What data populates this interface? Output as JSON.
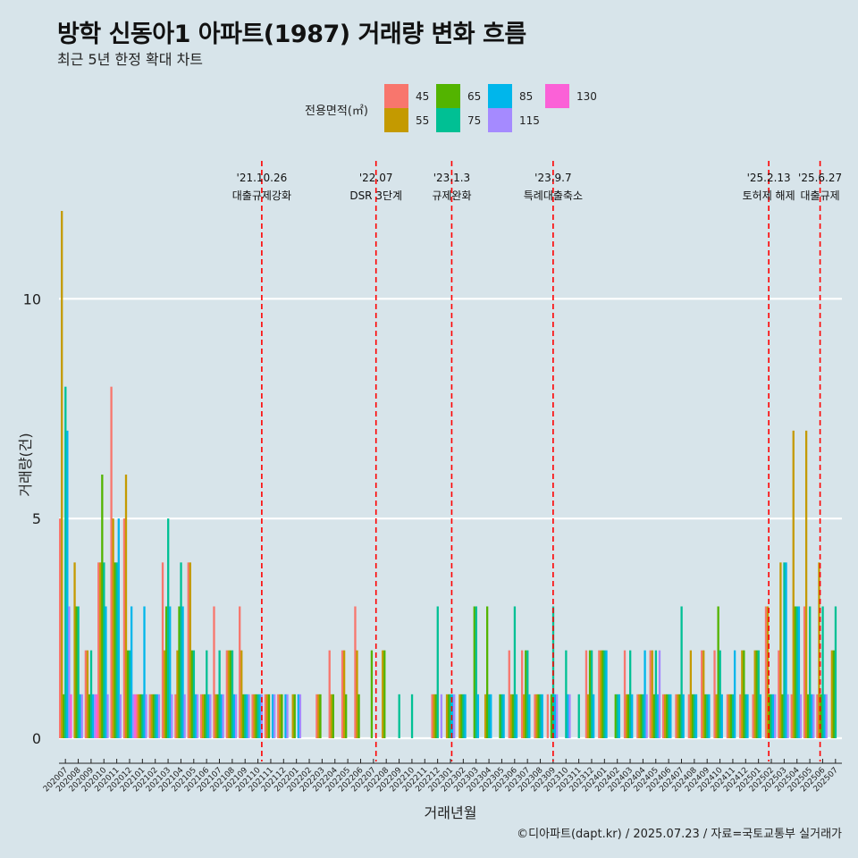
{
  "title": "방학 신동아1 아파트(1987) 거래량 변화 흐름",
  "subtitle": "최근 5년 한정 확대 차트",
  "caption": "©디아파트(dapt.kr) / 2025.07.23 / 자료=국토교통부 실거래가",
  "chart_data": {
    "type": "bar",
    "title": "방학 신동아1 아파트(1987) 거래량 변화 흐름",
    "xlabel": "거래년월",
    "ylabel": "거래량(건)",
    "ylim": [
      0,
      12
    ],
    "yticks": [
      0,
      5,
      10
    ],
    "legend_title": "전용면적(㎡)",
    "categories": [
      "202007",
      "202008",
      "202009",
      "202010",
      "202011",
      "202012",
      "202101",
      "202102",
      "202103",
      "202104",
      "202105",
      "202106",
      "202107",
      "202108",
      "202109",
      "202110",
      "202111",
      "202112",
      "202201",
      "202202",
      "202203",
      "202204",
      "202205",
      "202206",
      "202207",
      "202208",
      "202209",
      "202210",
      "202211",
      "202212",
      "202301",
      "202302",
      "202303",
      "202304",
      "202305",
      "202306",
      "202307",
      "202308",
      "202309",
      "202310",
      "202311",
      "202312",
      "202401",
      "202402",
      "202403",
      "202404",
      "202405",
      "202406",
      "202407",
      "202408",
      "202409",
      "202410",
      "202411",
      "202412",
      "202501",
      "202502",
      "202503",
      "202504",
      "202505",
      "202506",
      "202507"
    ],
    "series": [
      {
        "name": "45",
        "color": "#F8766D",
        "values": [
          5,
          0,
          2,
          4,
          8,
          5,
          1,
          1,
          4,
          1,
          4,
          1,
          3,
          2,
          3,
          1,
          1,
          1,
          0,
          0,
          1,
          2,
          2,
          3,
          0,
          0,
          0,
          0,
          0,
          1,
          0,
          0,
          0,
          0,
          0,
          2,
          2,
          1,
          1,
          0,
          0,
          2,
          2,
          0,
          2,
          1,
          2,
          1,
          1,
          1,
          2,
          2,
          1,
          1,
          1,
          3,
          2,
          1,
          3,
          1,
          0
        ]
      },
      {
        "name": "55",
        "color": "#C49A00",
        "values": [
          12,
          4,
          2,
          4,
          5,
          6,
          1,
          1,
          2,
          2,
          4,
          1,
          1,
          2,
          2,
          1,
          1,
          1,
          1,
          0,
          1,
          1,
          2,
          2,
          0,
          2,
          0,
          0,
          0,
          1,
          1,
          1,
          0,
          1,
          0,
          1,
          1,
          1,
          0,
          0,
          0,
          1,
          2,
          0,
          1,
          1,
          2,
          1,
          1,
          2,
          2,
          1,
          1,
          2,
          2,
          3,
          4,
          7,
          7,
          4,
          2
        ]
      },
      {
        "name": "65",
        "color": "#53B400",
        "values": [
          1,
          3,
          1,
          6,
          4,
          2,
          1,
          1,
          3,
          3,
          2,
          1,
          1,
          2,
          1,
          1,
          1,
          1,
          1,
          0,
          1,
          1,
          1,
          1,
          2,
          2,
          0,
          0,
          0,
          1,
          1,
          1,
          3,
          3,
          1,
          1,
          2,
          1,
          1,
          0,
          0,
          2,
          2,
          1,
          1,
          1,
          1,
          1,
          1,
          1,
          1,
          3,
          1,
          2,
          2,
          1,
          1,
          3,
          1,
          1,
          2
        ]
      },
      {
        "name": "75",
        "color": "#00C094",
        "values": [
          8,
          3,
          2,
          4,
          4,
          2,
          1,
          1,
          5,
          4,
          2,
          2,
          2,
          2,
          1,
          1,
          0,
          0,
          0,
          0,
          0,
          0,
          0,
          0,
          0,
          0,
          1,
          1,
          0,
          3,
          1,
          1,
          3,
          1,
          1,
          3,
          2,
          1,
          3,
          2,
          1,
          2,
          2,
          1,
          2,
          1,
          2,
          1,
          3,
          1,
          1,
          2,
          1,
          1,
          2,
          1,
          4,
          3,
          3,
          3,
          3
        ]
      },
      {
        "name": "85",
        "color": "#00B6EB",
        "values": [
          7,
          1,
          1,
          3,
          5,
          3,
          3,
          1,
          3,
          3,
          1,
          1,
          1,
          1,
          1,
          1,
          1,
          1,
          1,
          0,
          0,
          0,
          0,
          0,
          0,
          0,
          0,
          0,
          0,
          0,
          1,
          1,
          1,
          1,
          1,
          1,
          1,
          1,
          1,
          1,
          0,
          1,
          2,
          1,
          1,
          2,
          1,
          1,
          1,
          1,
          1,
          1,
          2,
          1,
          1,
          1,
          4,
          3,
          1,
          1,
          0
        ]
      },
      {
        "name": "115",
        "color": "#A58AFF",
        "values": [
          3,
          1,
          1,
          1,
          1,
          1,
          1,
          1,
          1,
          1,
          1,
          1,
          1,
          1,
          1,
          1,
          1,
          1,
          1,
          0,
          0,
          0,
          0,
          0,
          0,
          0,
          0,
          0,
          0,
          1,
          1,
          0,
          0,
          0,
          0,
          0,
          0,
          0,
          1,
          1,
          0,
          0,
          0,
          0,
          0,
          1,
          2,
          0,
          0,
          0,
          0,
          0,
          0,
          0,
          0,
          1,
          1,
          1,
          1,
          1,
          0
        ]
      },
      {
        "name": "130",
        "color": "#FB61D7",
        "values": [
          1,
          0,
          1,
          0,
          0,
          1,
          0,
          0,
          0,
          0,
          0,
          0,
          0,
          0,
          0,
          0,
          0,
          0,
          0,
          0,
          0,
          0,
          0,
          0,
          0,
          0,
          0,
          0,
          0,
          0,
          0,
          0,
          0,
          0,
          0,
          0,
          0,
          0,
          0,
          0,
          0,
          0,
          0,
          0,
          0,
          0,
          0,
          0,
          0,
          0,
          0,
          0,
          0,
          0,
          0,
          0,
          0,
          0,
          0,
          0,
          0
        ]
      }
    ],
    "events": [
      {
        "date": "'21.10.26",
        "label": "대출규제강화",
        "index": 15.8
      },
      {
        "date": "'22.07",
        "label": "DSR 3단계",
        "index": 24.7
      },
      {
        "date": "'23.1.3",
        "label": "규제완화",
        "index": 30.6
      },
      {
        "date": "'23.9.7",
        "label": "특례대출축소",
        "index": 38.5
      },
      {
        "date": "'25.2.13",
        "label": "토허제 해제",
        "index": 55.3
      },
      {
        "date": "'25.6.27",
        "label": "대출규제",
        "index": 59.3
      }
    ]
  }
}
